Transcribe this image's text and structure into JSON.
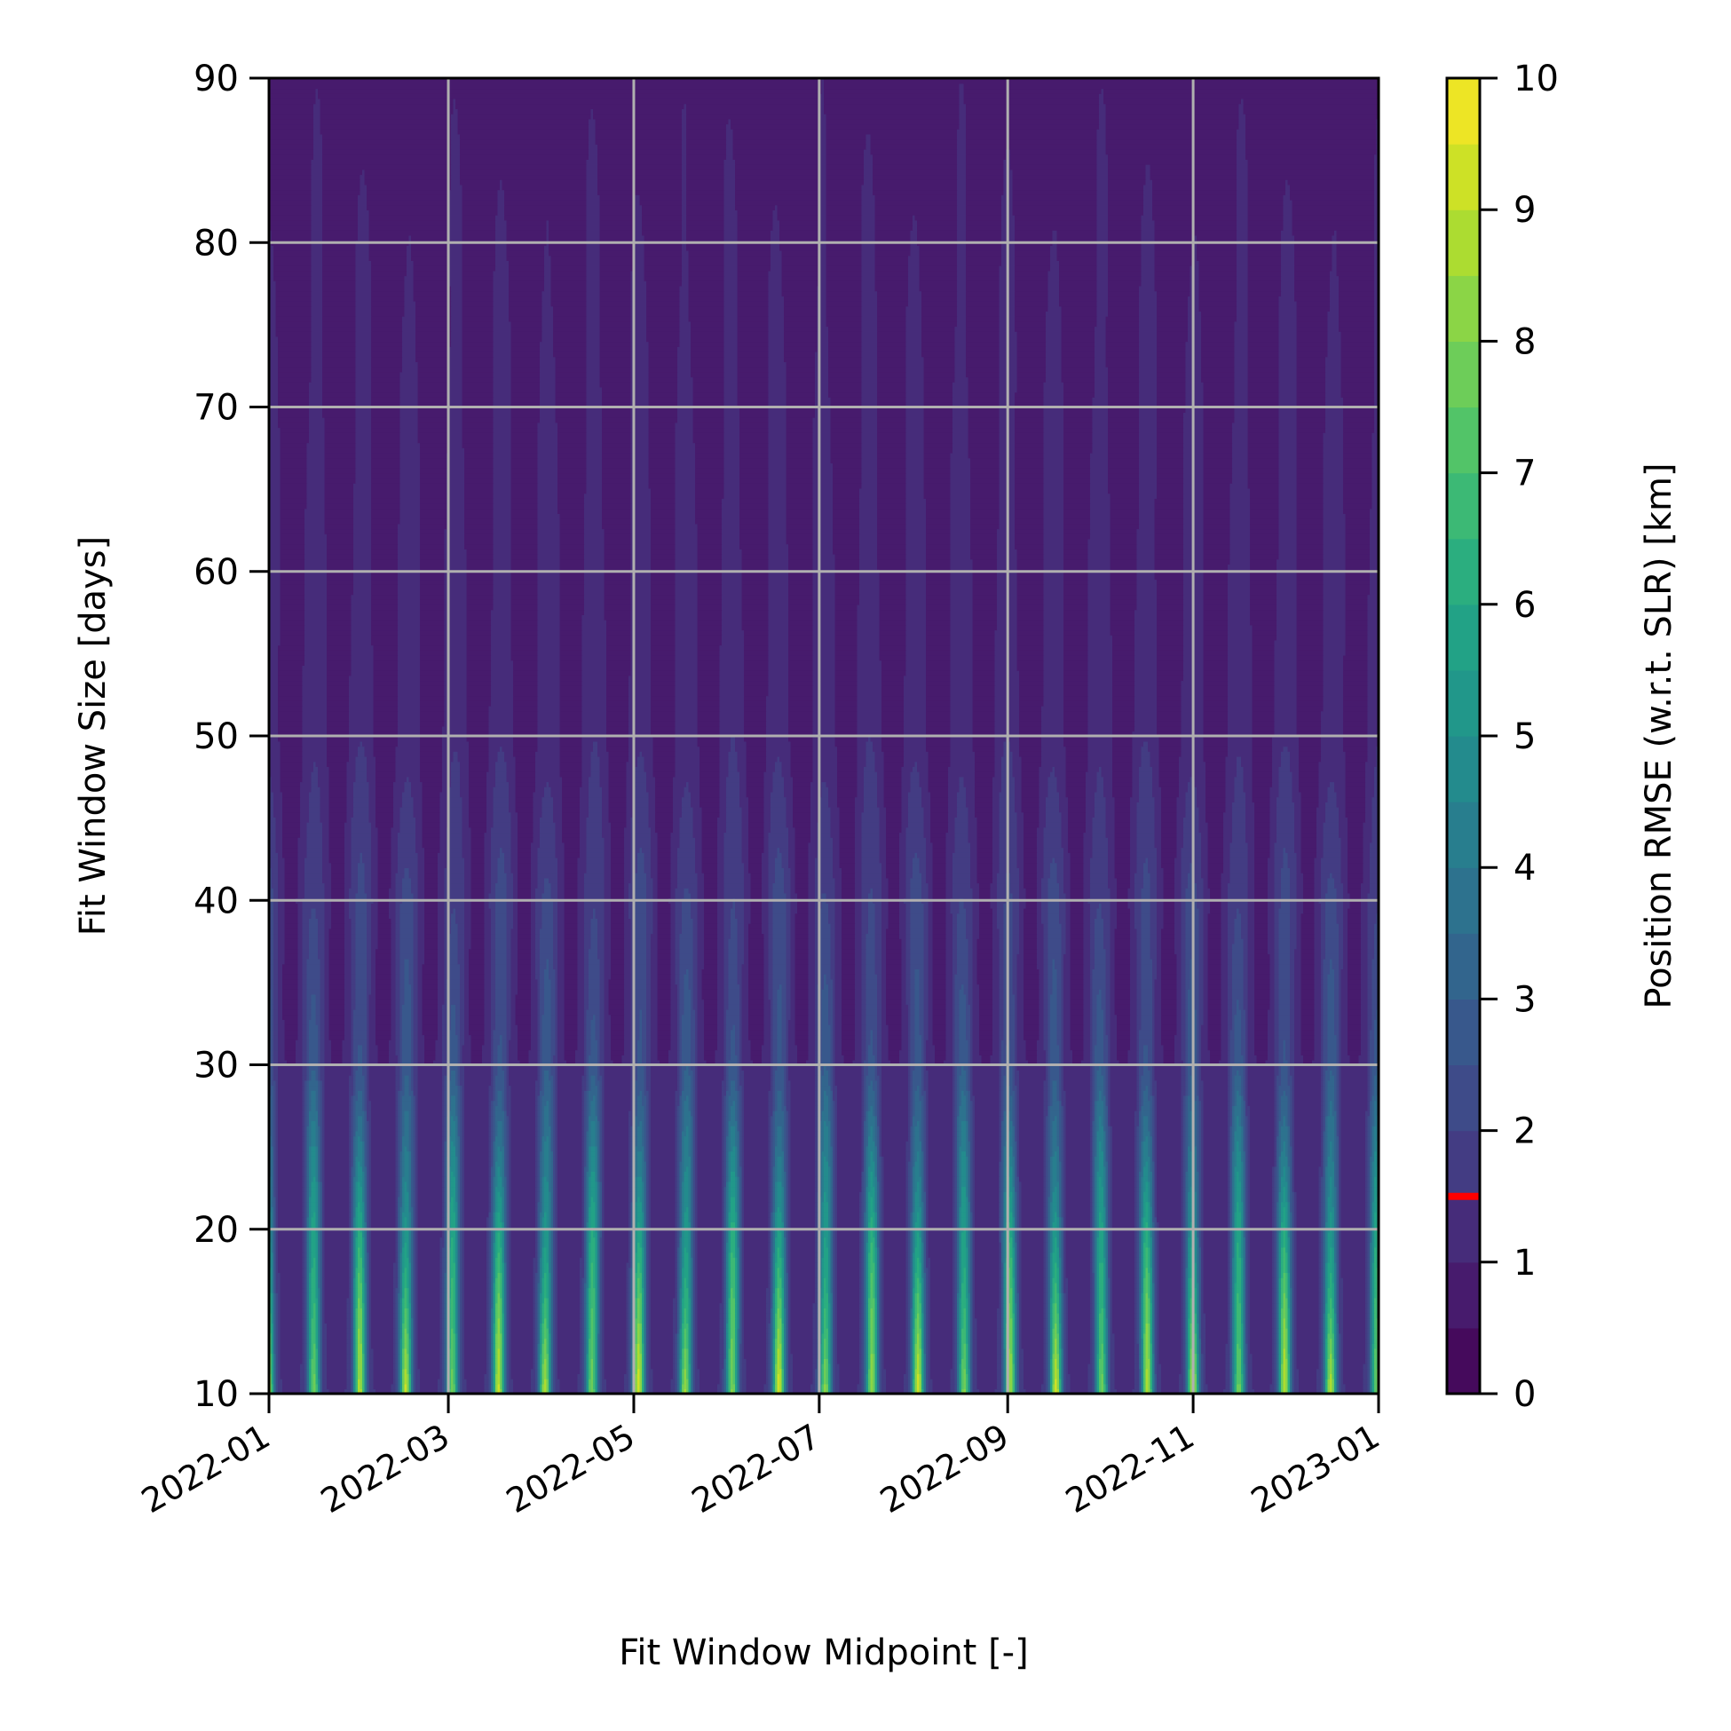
{
  "chart_data": {
    "type": "heatmap",
    "subtype": "filled-contour",
    "title": "",
    "xlabel": "Fit Window Midpoint [-]",
    "ylabel": "Fit Window Size [days]",
    "x_axis": {
      "scale": "date",
      "range": [
        "2022-01-01",
        "2023-01-01"
      ],
      "ticks": [
        "2022-01",
        "2022-03",
        "2022-05",
        "2022-07",
        "2022-09",
        "2022-11",
        "2023-01"
      ]
    },
    "y_axis": {
      "range": [
        10,
        90
      ],
      "ticks": [
        "10",
        "20",
        "30",
        "40",
        "50",
        "60",
        "70",
        "80",
        "90"
      ]
    },
    "grid": true,
    "colorbar": {
      "label": "Position RMSE (w.r.t. SLR) [km]",
      "colormap": "viridis",
      "range": [
        0,
        10
      ],
      "levels": 20,
      "ticks": [
        "0",
        "1",
        "2",
        "3",
        "4",
        "5",
        "6",
        "7",
        "8",
        "9",
        "10"
      ],
      "marker_value": 1.5,
      "marker_color": "#ff0000"
    },
    "pattern": {
      "stripes_per_year": 24,
      "rmse_at_window_10_days": {
        "min": 1.5,
        "max": 9.5
      },
      "rmse_at_window_30_days": {
        "min": 1.0,
        "max": 3.0
      },
      "rmse_at_window_50_days": {
        "min": 0.6,
        "max": 1.5
      },
      "rmse_at_window_90_days": {
        "min": 0.5,
        "max": 1.0
      }
    }
  }
}
